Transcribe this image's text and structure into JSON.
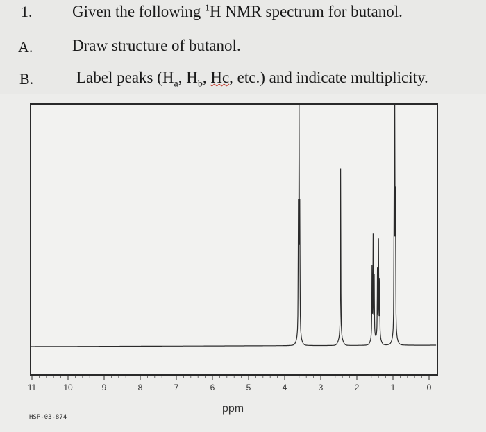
{
  "question": {
    "number": "1.",
    "text_pre": "Given the following ",
    "text_sup": "1",
    "text_post": "H NMR spectrum for butanol."
  },
  "part_a": {
    "label": "A.",
    "text": "Draw structure of butanol."
  },
  "part_b": {
    "label": "B.",
    "text_1": "Label peaks (H",
    "sub_a": "a",
    "text_2": ", H",
    "sub_b": "b",
    "text_3": ", ",
    "hc": "Hc",
    "text_4": ", etc.) and indicate multiplicity."
  },
  "spectrum_code": "HSP-03-874",
  "axis": {
    "label": "ppm"
  },
  "chart_data": {
    "type": "line",
    "xlabel": "ppm",
    "xlim": [
      11,
      0
    ],
    "x_reversed": true,
    "ticks": [
      "11",
      "10",
      "9",
      "8",
      "7",
      "6",
      "5",
      "4",
      "3",
      "2",
      "1",
      "0"
    ],
    "peaks": [
      {
        "ppm": 3.6,
        "multiplicity": "triplet",
        "rel_height": 0.92
      },
      {
        "ppm": 2.45,
        "multiplicity": "singlet",
        "rel_height": 0.72
      },
      {
        "ppm": 1.55,
        "multiplicity": "multiplet",
        "rel_height": 0.42
      },
      {
        "ppm": 1.4,
        "multiplicity": "multiplet",
        "rel_height": 0.4
      },
      {
        "ppm": 0.95,
        "multiplicity": "triplet",
        "rel_height": 1.0
      }
    ]
  }
}
